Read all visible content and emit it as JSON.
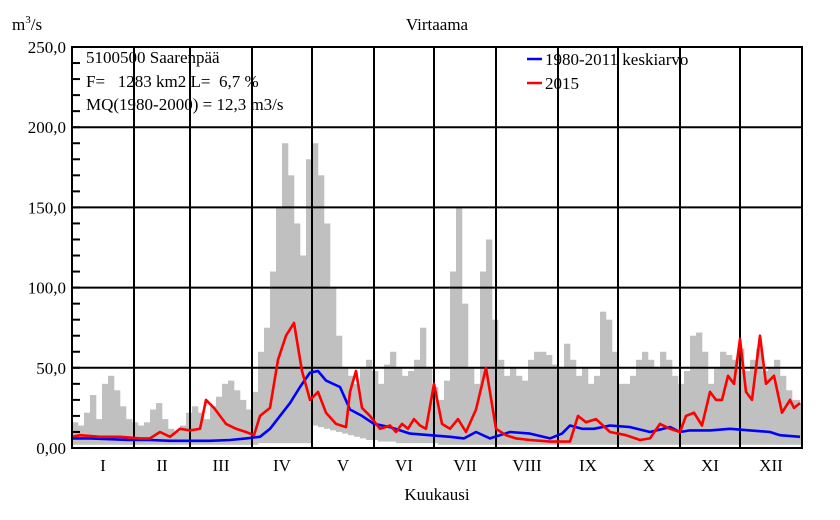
{
  "chart_data": {
    "type": "area",
    "title": "Virtaama",
    "ylabel": "m3/s",
    "ylabel_superscript": "3",
    "ylabel_base": "m",
    "ylabel_suffix": "/s",
    "xlabel": "Kuukausi",
    "ylim": [
      0,
      250
    ],
    "xlim": [
      1,
      365
    ],
    "grid": true,
    "y_ticks": [
      {
        "value": 0,
        "label": "0,00"
      },
      {
        "value": 50,
        "label": "50,0"
      },
      {
        "value": 100,
        "label": "100,0"
      },
      {
        "value": 150,
        "label": "150,0"
      },
      {
        "value": 200,
        "label": "200,0"
      },
      {
        "value": 250,
        "label": "250,0"
      }
    ],
    "y_minor_step": 10,
    "month_starts": [
      1,
      32,
      60,
      91,
      121,
      152,
      182,
      213,
      244,
      274,
      305,
      335,
      366
    ],
    "x_tick_labels": [
      "I",
      "II",
      "III",
      "IV",
      "V",
      "VI",
      "VII",
      "VIII",
      "IX",
      "X",
      "XI",
      "XII"
    ],
    "info_box": [
      "5100500 Saarenpää",
      "F=   1283 km2 L=  6,7 %",
      "MQ(1980-2000) = 12,3 m3/s"
    ],
    "legend": {
      "placement": "top-right",
      "entries": [
        {
          "label": "1980-2011 keskiarvo",
          "color": "#0000ff"
        },
        {
          "label": "2015",
          "color": "#ff0000"
        }
      ]
    },
    "colors": {
      "range_fill": "#c0c0c0",
      "mean": "#0000ff",
      "year": "#ff0000",
      "grid": "#000000"
    },
    "range": {
      "name": "1980-2011 min-max",
      "day": [
        1,
        4,
        7,
        10,
        13,
        16,
        19,
        22,
        25,
        28,
        31,
        34,
        37,
        40,
        43,
        46,
        49,
        52,
        55,
        58,
        61,
        64,
        67,
        70,
        73,
        76,
        79,
        82,
        85,
        88,
        91,
        94,
        97,
        100,
        103,
        106,
        109,
        112,
        115,
        118,
        121,
        124,
        127,
        130,
        133,
        136,
        139,
        142,
        145,
        148,
        151,
        154,
        157,
        160,
        163,
        166,
        169,
        172,
        175,
        178,
        181,
        184,
        187,
        190,
        193,
        196,
        199,
        202,
        205,
        208,
        211,
        214,
        217,
        220,
        223,
        226,
        229,
        232,
        235,
        238,
        241,
        244,
        247,
        250,
        253,
        256,
        259,
        262,
        265,
        268,
        271,
        274,
        277,
        280,
        283,
        286,
        289,
        292,
        295,
        298,
        301,
        304,
        307,
        310,
        313,
        316,
        319,
        322,
        325,
        328,
        331,
        334,
        337,
        340,
        343,
        346,
        349,
        352,
        355,
        358,
        361,
        365
      ],
      "max": [
        16,
        14,
        22,
        33,
        18,
        40,
        45,
        36,
        26,
        18,
        16,
        14,
        16,
        24,
        28,
        18,
        12,
        10,
        14,
        22,
        26,
        22,
        18,
        26,
        32,
        40,
        42,
        36,
        30,
        24,
        35,
        60,
        75,
        110,
        150,
        190,
        170,
        140,
        120,
        180,
        190,
        170,
        140,
        100,
        70,
        50,
        45,
        40,
        50,
        55,
        48,
        40,
        52,
        60,
        50,
        45,
        48,
        55,
        75,
        50,
        38,
        30,
        42,
        110,
        150,
        90,
        50,
        40,
        110,
        130,
        80,
        55,
        45,
        50,
        45,
        42,
        55,
        60,
        60,
        58,
        52,
        50,
        65,
        55,
        45,
        50,
        40,
        45,
        85,
        80,
        60,
        40,
        40,
        45,
        55,
        60,
        55,
        50,
        60,
        55,
        45,
        40,
        48,
        70,
        72,
        60,
        40,
        50,
        60,
        58,
        55,
        62,
        48,
        55,
        62,
        48,
        50,
        55,
        45,
        36,
        30,
        28
      ],
      "min": [
        2,
        2,
        2,
        2,
        2,
        2,
        2,
        2,
        2,
        2,
        2,
        2,
        2,
        2,
        2,
        2,
        2,
        2,
        2,
        2,
        2,
        2,
        2,
        2,
        2,
        2,
        2,
        2,
        2,
        2,
        2,
        3,
        3,
        3,
        3,
        3,
        3,
        3,
        3,
        3,
        14,
        13,
        12,
        11,
        10,
        9,
        8,
        7,
        6,
        5,
        5,
        4,
        4,
        4,
        3,
        3,
        3,
        3,
        3,
        3,
        3,
        2,
        2,
        2,
        2,
        2,
        2,
        2,
        2,
        2,
        2,
        2,
        2,
        2,
        2,
        2,
        2,
        2,
        2,
        2,
        2,
        2,
        2,
        2,
        2,
        2,
        2,
        2,
        2,
        2,
        2,
        2,
        2,
        2,
        2,
        2,
        2,
        2,
        2,
        2,
        2,
        2,
        2,
        2,
        2,
        2,
        2,
        2,
        2,
        2,
        2,
        2,
        2,
        2,
        2,
        2,
        2,
        2,
        2,
        2,
        2,
        2
      ]
    },
    "series": [
      {
        "name": "1980-2011 keskiarvo",
        "day": [
          1,
          10,
          20,
          30,
          40,
          50,
          60,
          70,
          80,
          88,
          95,
          100,
          105,
          110,
          115,
          120,
          124,
          128,
          135,
          140,
          146,
          152,
          160,
          170,
          180,
          190,
          197,
          203,
          210,
          220,
          230,
          240,
          246,
          250,
          256,
          262,
          270,
          280,
          290,
          300,
          305,
          310,
          320,
          330,
          340,
          350,
          355,
          365
        ],
        "values": [
          6,
          6,
          5.5,
          5,
          5,
          4.5,
          4.5,
          4.5,
          5,
          6,
          7,
          12,
          20,
          28,
          38,
          47,
          48,
          42,
          38,
          24,
          20,
          15,
          13,
          9,
          8,
          7,
          6,
          10,
          6,
          10,
          9,
          6,
          9,
          14,
          12,
          12,
          14,
          13,
          10,
          13,
          10,
          11,
          11,
          12,
          11,
          10,
          8,
          7
        ]
      },
      {
        "name": "2015",
        "day": [
          1,
          5,
          15,
          25,
          35,
          40,
          45,
          50,
          55,
          60,
          65,
          68,
          72,
          78,
          83,
          88,
          92,
          95,
          100,
          104,
          108,
          112,
          116,
          120,
          124,
          128,
          133,
          138,
          140,
          143,
          146,
          150,
          155,
          160,
          163,
          166,
          169,
          172,
          175,
          178,
          182,
          186,
          190,
          194,
          198,
          203,
          208,
          213,
          218,
          223,
          230,
          240,
          246,
          250,
          254,
          258,
          263,
          270,
          278,
          285,
          290,
          295,
          300,
          305,
          308,
          312,
          316,
          320,
          323,
          326,
          329,
          332,
          335,
          338,
          341,
          345,
          348,
          352,
          356,
          360,
          362,
          365
        ],
        "values": [
          7,
          8,
          7,
          7,
          6,
          6,
          10,
          7,
          12,
          11,
          12,
          30,
          25,
          15,
          12,
          10,
          8,
          20,
          25,
          55,
          70,
          78,
          48,
          30,
          35,
          22,
          15,
          13,
          35,
          48,
          25,
          20,
          12,
          14,
          10,
          15,
          12,
          18,
          14,
          12,
          40,
          15,
          12,
          18,
          10,
          24,
          50,
          12,
          8,
          6,
          5,
          4,
          4,
          4,
          20,
          16,
          18,
          10,
          8,
          5,
          6,
          15,
          12,
          10,
          20,
          22,
          14,
          35,
          30,
          30,
          45,
          40,
          68,
          35,
          30,
          70,
          40,
          45,
          22,
          30,
          25,
          28
        ]
      }
    ]
  }
}
